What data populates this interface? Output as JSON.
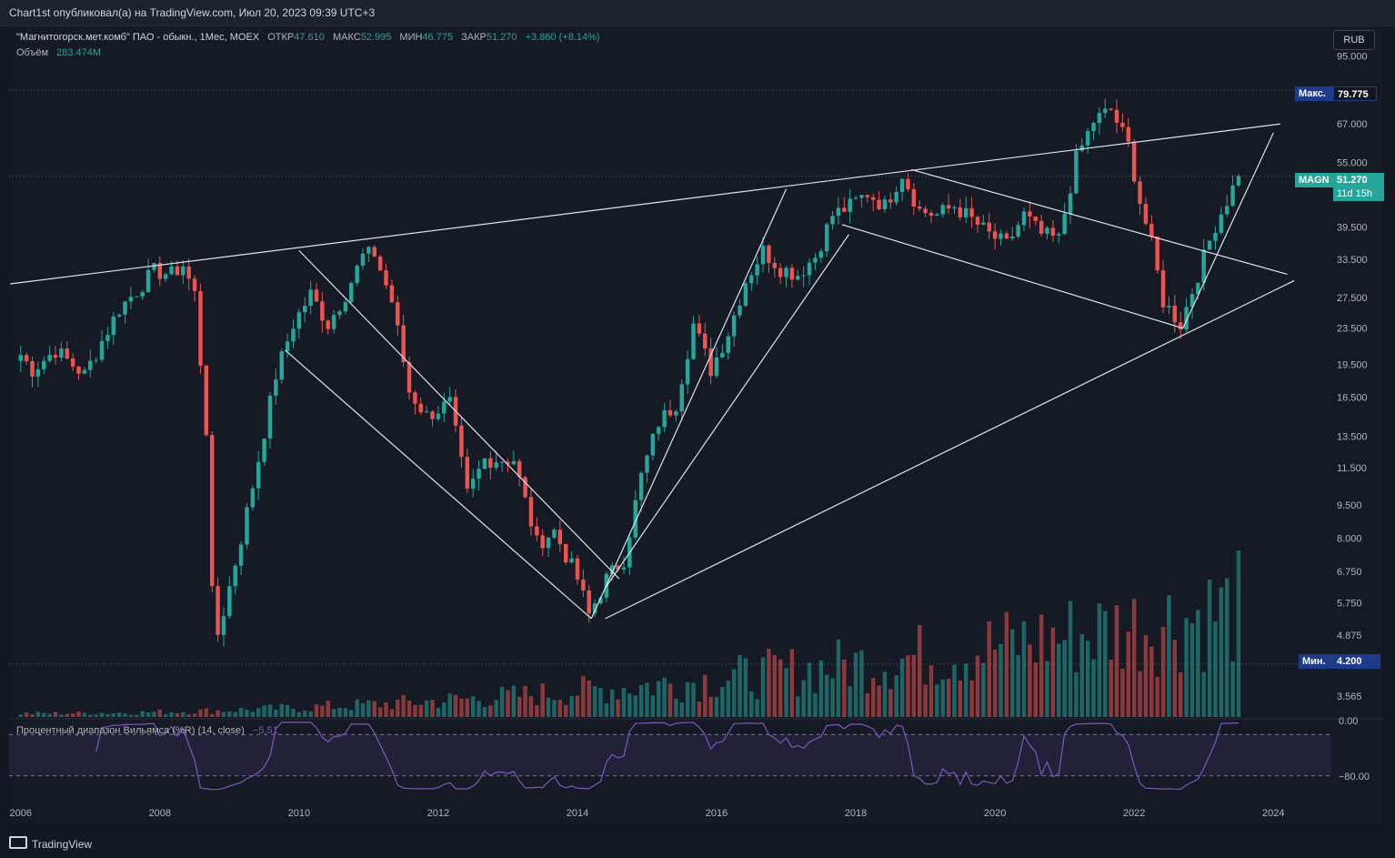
{
  "header": {
    "publisher_text": "Chart1st опубликовал(а) на TradingView.com, Июл 20, 2023 09:39 UTC+3"
  },
  "legend": {
    "symbol": "\"Магнитогорск.мет.комб\" ПАО - обыкн., 1Мес, MOEX",
    "open_label": "ОТКР",
    "open": "47.610",
    "high_label": "МАКС",
    "high": "52.995",
    "low_label": "МИН",
    "low": "46.775",
    "close_label": "ЗАКР",
    "close": "51.270",
    "change": "+3.860 (+8.14%)",
    "volume_label": "Объём",
    "volume": "283.474M"
  },
  "currency": "RUB",
  "indicator": {
    "label": "Процентный диапазон Вильямса (%R) (14, close)",
    "value": "−5.51"
  },
  "tags": {
    "max_label": "Макс.",
    "max_value": "79.775",
    "symbol_tag": "MAGN",
    "last_price": "51.270",
    "countdown": "11d 15h",
    "min_label": "Мин.",
    "min_value": "4.200"
  },
  "footer": {
    "logo_text": "TradingView"
  },
  "colors": {
    "up": "#26a69a",
    "down": "#ef5350",
    "wr_line": "#7e57c2",
    "background": "#131722"
  },
  "chart_data": {
    "type": "candlestick",
    "scale": "log",
    "timeframe": "1M",
    "x_range": [
      "2005-11",
      "2024-11"
    ],
    "y_range": [
      3.2,
      110
    ],
    "price_ticks": [
      "95.000",
      "67.000",
      "55.000",
      "39.500",
      "33.500",
      "27.500",
      "23.500",
      "19.500",
      "16.500",
      "13.500",
      "11.500",
      "9.500",
      "8.000",
      "6.750",
      "5.750",
      "4.875",
      "3.565"
    ],
    "x_ticks": [
      "2006",
      "2008",
      "2010",
      "2012",
      "2014",
      "2016",
      "2018",
      "2020",
      "2022",
      "2024"
    ],
    "all_time_high": 79.775,
    "all_time_low": 4.2,
    "last_close": 51.27,
    "price_path": [
      [
        "2006-01",
        20.5
      ],
      [
        "2006-03",
        19
      ],
      [
        "2006-07",
        21
      ],
      [
        "2006-12",
        18.5
      ],
      [
        "2007-03",
        22
      ],
      [
        "2007-06",
        26
      ],
      [
        "2007-09",
        28.5
      ],
      [
        "2007-12",
        31.5
      ],
      [
        "2008-03",
        31
      ],
      [
        "2008-05",
        32.5
      ],
      [
        "2008-07",
        28
      ],
      [
        "2008-09",
        14
      ],
      [
        "2008-10",
        6
      ],
      [
        "2008-11",
        4.9
      ],
      [
        "2008-12",
        5.5
      ],
      [
        "2009-03",
        8
      ],
      [
        "2009-06",
        12
      ],
      [
        "2009-09",
        18.5
      ],
      [
        "2009-12",
        24
      ],
      [
        "2010-03",
        28
      ],
      [
        "2010-06",
        24
      ],
      [
        "2010-09",
        28
      ],
      [
        "2010-12",
        34
      ],
      [
        "2011-02",
        34.5
      ],
      [
        "2011-05",
        27
      ],
      [
        "2011-08",
        17
      ],
      [
        "2011-11",
        15
      ],
      [
        "2012-03",
        16
      ],
      [
        "2012-06",
        10
      ],
      [
        "2012-09",
        12
      ],
      [
        "2013-02",
        12
      ],
      [
        "2013-06",
        7.8
      ],
      [
        "2013-09",
        8.3
      ],
      [
        "2014-01",
        6.5
      ],
      [
        "2014-03",
        5.4
      ],
      [
        "2014-06",
        6.5
      ],
      [
        "2014-09",
        7.2
      ],
      [
        "2014-12",
        11
      ],
      [
        "2015-03",
        14.5
      ],
      [
        "2015-06",
        16
      ],
      [
        "2015-09",
        24
      ],
      [
        "2015-12",
        19
      ],
      [
        "2016-03",
        23
      ],
      [
        "2016-06",
        30
      ],
      [
        "2016-09",
        35
      ],
      [
        "2016-12",
        32
      ],
      [
        "2017-03",
        31
      ],
      [
        "2017-06",
        34
      ],
      [
        "2017-09",
        42
      ],
      [
        "2017-12",
        44
      ],
      [
        "2018-03",
        47
      ],
      [
        "2018-06",
        44
      ],
      [
        "2018-09",
        52
      ],
      [
        "2018-12",
        43
      ],
      [
        "2019-03",
        42
      ],
      [
        "2019-06",
        44
      ],
      [
        "2019-09",
        41
      ],
      [
        "2019-12",
        38
      ],
      [
        "2020-03",
        36
      ],
      [
        "2020-06",
        42
      ],
      [
        "2020-09",
        38
      ],
      [
        "2020-12",
        37
      ],
      [
        "2021-03",
        56
      ],
      [
        "2021-06",
        68
      ],
      [
        "2021-09",
        72
      ],
      [
        "2021-12",
        60
      ],
      [
        "2022-02",
        45
      ],
      [
        "2022-04",
        36
      ],
      [
        "2022-06",
        27
      ],
      [
        "2022-09",
        24
      ],
      [
        "2022-12",
        31
      ],
      [
        "2023-03",
        40
      ],
      [
        "2023-07",
        51.27
      ]
    ]
  }
}
